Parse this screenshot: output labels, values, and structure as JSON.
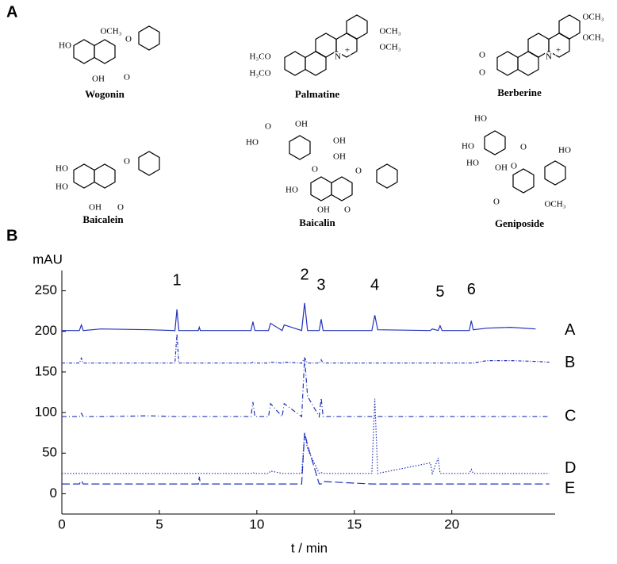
{
  "panels": [
    "A",
    "B"
  ],
  "structures": [
    {
      "name": "Wogonin",
      "atoms": [
        "OCH₃",
        "HO",
        "OH",
        "O",
        "O"
      ]
    },
    {
      "name": "Palmatine",
      "atoms": [
        "OCH₃",
        "OCH₃",
        "H₃CO",
        "H₃CO",
        "N",
        "+"
      ]
    },
    {
      "name": "Berberine",
      "atoms": [
        "OCH₃",
        "OCH₃",
        "N",
        "+",
        "O",
        "O"
      ]
    },
    {
      "name": "Baicalein",
      "atoms": [
        "HO",
        "HO",
        "OH",
        "O",
        "O"
      ]
    },
    {
      "name": "Baicalin",
      "atoms": [
        "O",
        "HO",
        "OH",
        "OH",
        "OH",
        "O",
        "HO",
        "OH",
        "O",
        "O"
      ]
    },
    {
      "name": "Geniposide",
      "atoms": [
        "HO",
        "HO",
        "HO",
        "OH",
        "O",
        "O",
        "HO",
        "O",
        "OCH₃"
      ]
    }
  ],
  "chart_data": {
    "type": "line",
    "ylabel": "mAU",
    "xlabel": "t / min",
    "color": "#2233bb",
    "x": [
      0,
      0.9,
      1.0,
      1.1,
      2,
      4.5,
      5.8,
      5.9,
      6.0,
      7,
      7.05,
      7.1,
      9.7,
      9.8,
      9.9,
      10.6,
      10.7,
      11.3,
      11.4,
      12.3,
      12.45,
      12.6,
      13.2,
      13.3,
      13.4,
      15.9,
      16.05,
      16.2,
      18.9,
      19.0,
      19.3,
      19.4,
      19.5,
      20.9,
      21.0,
      21.1,
      21.8,
      23,
      24.3,
      25
    ],
    "series": [
      {
        "name": "A",
        "values": [
          201,
          201,
          208,
          201,
          203,
          202,
          201,
          227,
          201,
          201,
          205,
          201,
          201,
          212,
          201,
          201,
          210,
          201,
          208,
          201,
          235,
          201,
          201,
          215,
          201,
          201,
          220,
          202,
          201,
          203,
          201,
          207,
          201,
          201,
          213,
          202,
          204,
          205,
          203,
          null
        ]
      },
      {
        "name": "B",
        "values": [
          161,
          161,
          167,
          161,
          161,
          161,
          161,
          197,
          161,
          161,
          161,
          161,
          161,
          162,
          161,
          161,
          162,
          161,
          162,
          161,
          167,
          161,
          161,
          165,
          161,
          161,
          161,
          161,
          161,
          161,
          161,
          161,
          161,
          161,
          161,
          161,
          164,
          164,
          163,
          162
        ]
      },
      {
        "name": "C",
        "values": [
          95,
          95,
          99,
          95,
          95,
          96,
          95,
          95,
          95,
          95,
          95,
          95,
          95,
          113,
          95,
          95,
          111,
          95,
          111,
          95,
          168,
          120,
          95,
          118,
          95,
          95,
          95,
          95,
          95,
          95,
          95,
          95,
          95,
          95,
          95,
          95,
          95,
          95,
          95,
          95
        ]
      },
      {
        "name": "D",
        "values": [
          25,
          25,
          25,
          25,
          25,
          25,
          25,
          25,
          25,
          25,
          25,
          25,
          25,
          26,
          25,
          25,
          28,
          25,
          25,
          25,
          75,
          55,
          25,
          26,
          25,
          25,
          117,
          25,
          38,
          25,
          44,
          25,
          25,
          25,
          30,
          25,
          25,
          25,
          25,
          25
        ]
      },
      {
        "name": "E",
        "values": [
          12,
          12,
          16,
          12,
          12,
          12,
          12,
          12,
          12,
          12,
          21,
          12,
          12,
          12,
          12,
          12,
          12,
          12,
          12,
          12,
          75,
          60,
          12,
          12,
          15,
          12,
          12,
          12,
          12,
          12,
          12,
          12,
          12,
          12,
          12,
          12,
          12,
          12,
          12,
          12
        ]
      }
    ],
    "annotations": [
      {
        "text": "1",
        "x": 5.9,
        "y": 262
      },
      {
        "text": "2",
        "x": 12.45,
        "y": 269
      },
      {
        "text": "3",
        "x": 13.3,
        "y": 256
      },
      {
        "text": "4",
        "x": 16.05,
        "y": 256
      },
      {
        "text": "5",
        "x": 19.4,
        "y": 248
      },
      {
        "text": "6",
        "x": 21.0,
        "y": 251
      }
    ],
    "xlim": [
      0,
      25.3
    ],
    "ylim": [
      -25,
      275
    ],
    "xticks": [
      0,
      5,
      10,
      15,
      20
    ],
    "yticks": [
      0,
      50,
      100,
      150,
      200,
      250
    ]
  }
}
